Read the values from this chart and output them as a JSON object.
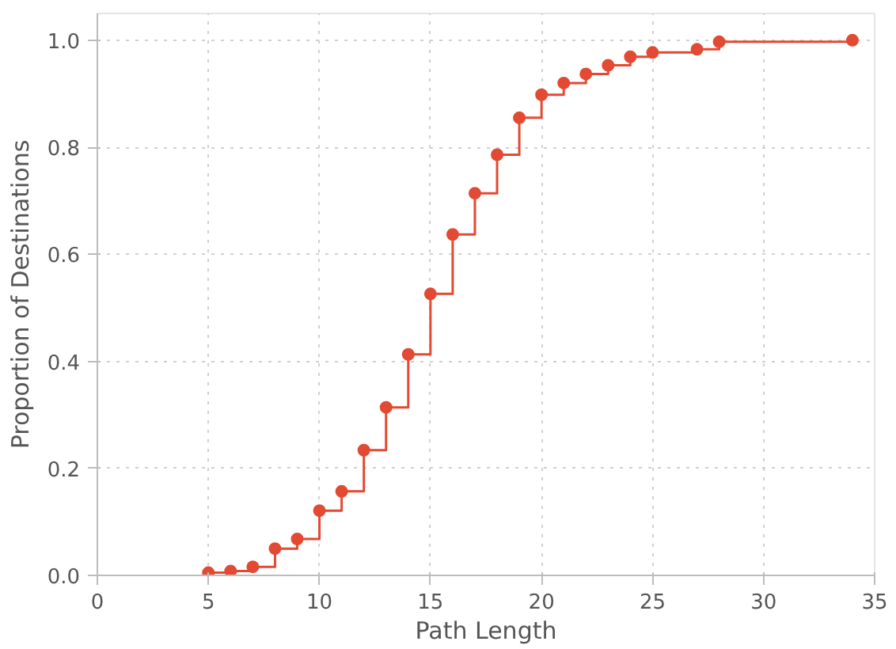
{
  "chart_data": {
    "type": "step",
    "xlabel": "Path Length",
    "ylabel": "Proportion of Destinations",
    "x": [
      5,
      6,
      7,
      8,
      9,
      10,
      11,
      12,
      13,
      14,
      15,
      16,
      17,
      18,
      19,
      20,
      21,
      22,
      23,
      24,
      25,
      27,
      28,
      34
    ],
    "series": [
      {
        "color": "#e24a33",
        "values": [
          0.005,
          0.008,
          0.016,
          0.05,
          0.068,
          0.121,
          0.157,
          0.234,
          0.314,
          0.413,
          0.526,
          0.637,
          0.714,
          0.786,
          0.855,
          0.898,
          0.92,
          0.937,
          0.953,
          0.969,
          0.977,
          0.983,
          0.997,
          1.0
        ]
      }
    ],
    "xlim": [
      0,
      35
    ],
    "ylim": [
      0,
      1.05
    ],
    "xticks": [
      0,
      5,
      10,
      15,
      20,
      25,
      30,
      35
    ],
    "yticks": [
      {
        "value": 0,
        "label": "0.0"
      },
      {
        "value": 0.2,
        "label": "0.2"
      },
      {
        "value": 0.4,
        "label": "0.4"
      },
      {
        "value": 0.6,
        "label": "0.6"
      },
      {
        "value": 0.8,
        "label": "0.8"
      },
      {
        "value": 1.0,
        "label": "1.0"
      }
    ],
    "grid": true,
    "marker": "circle",
    "line_style": "solid"
  }
}
